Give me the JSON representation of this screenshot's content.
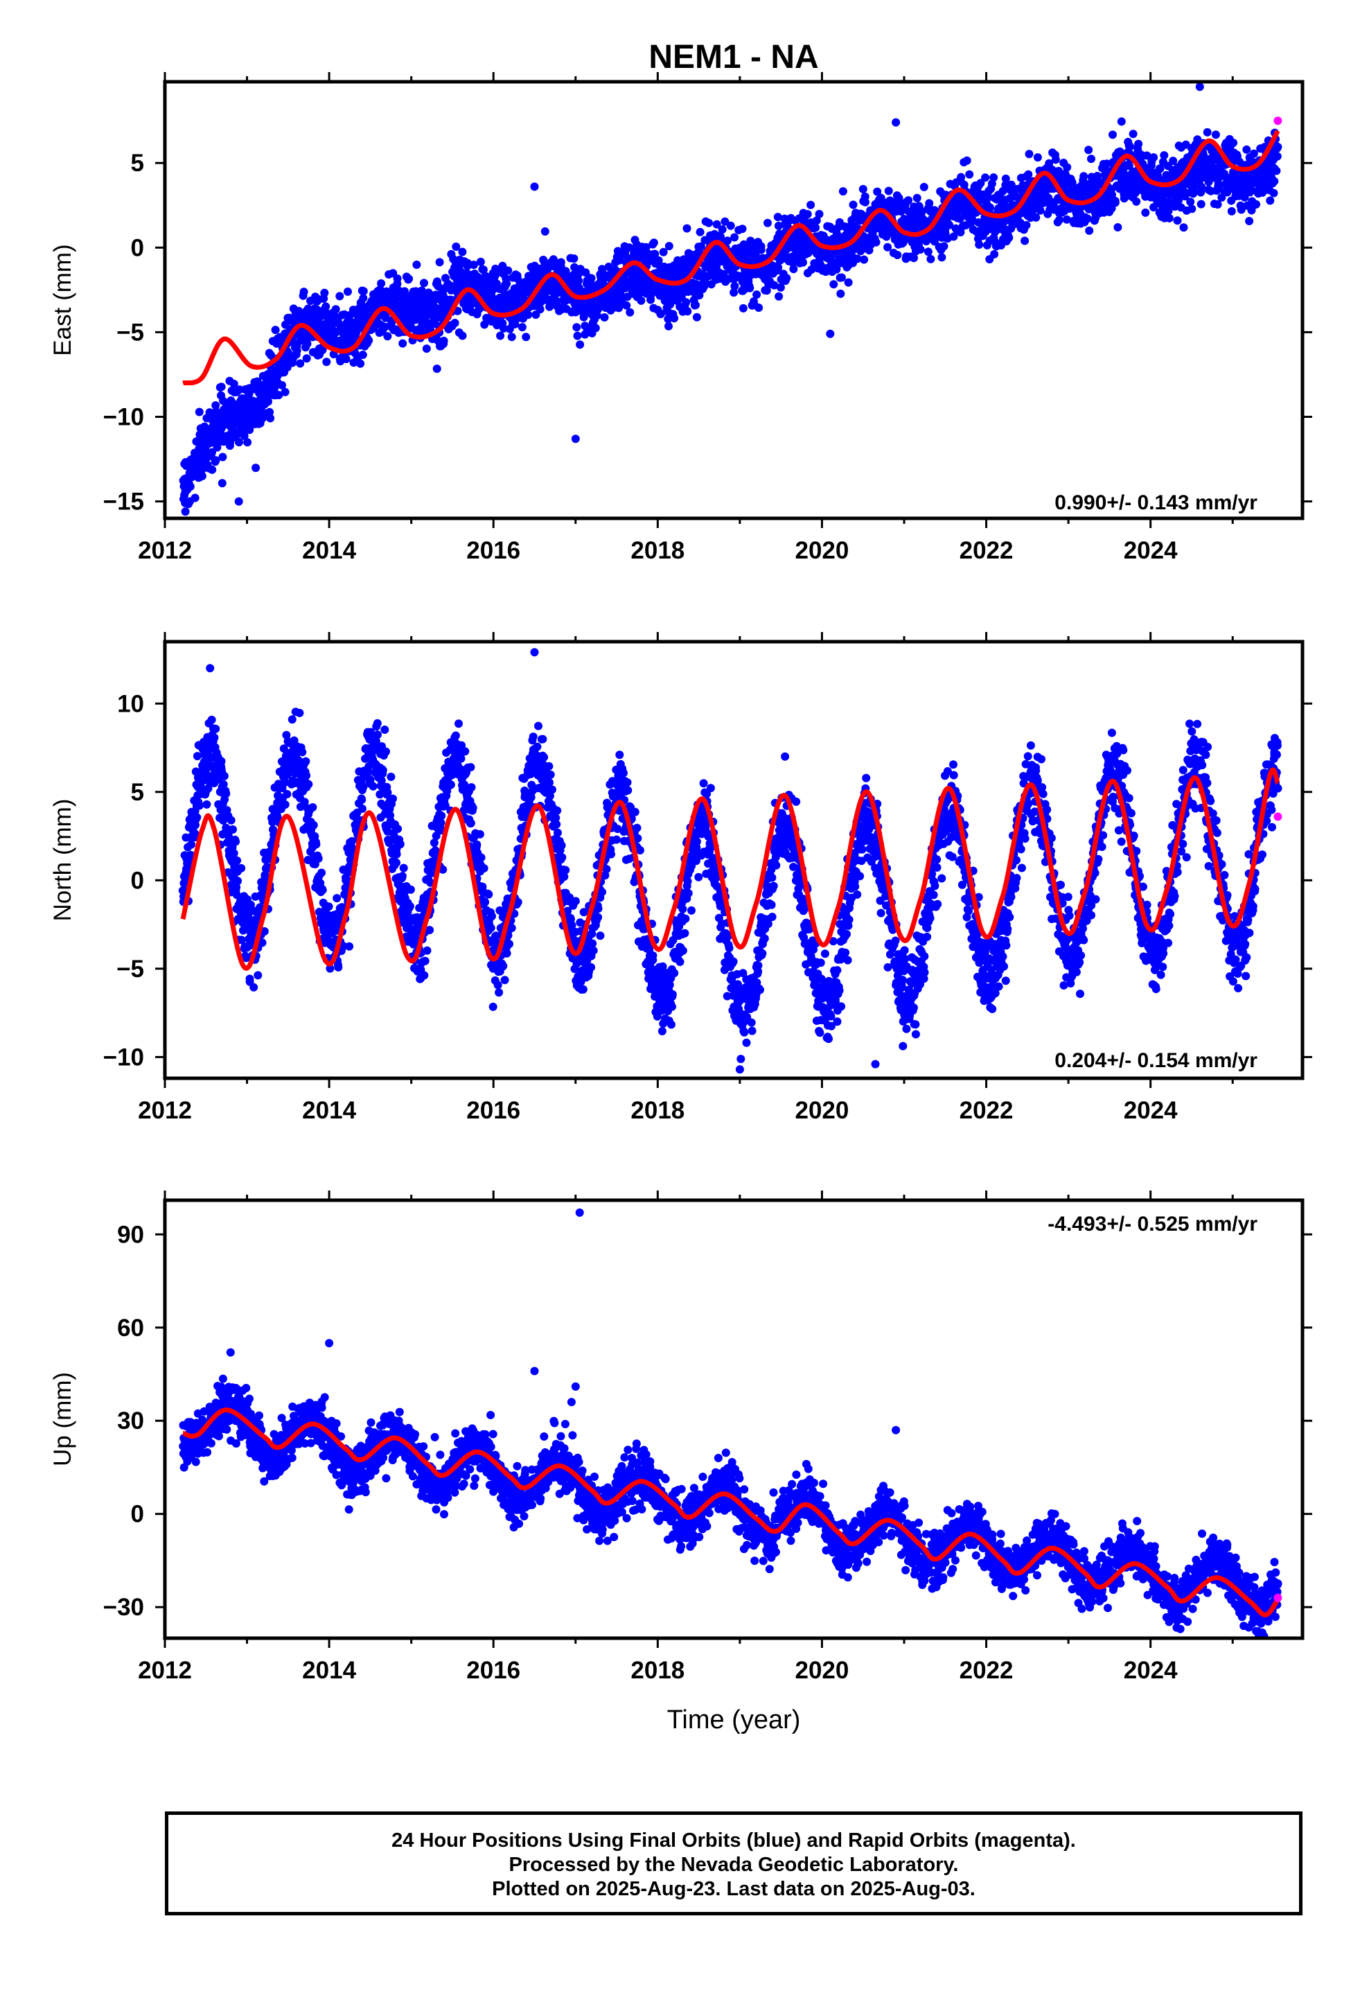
{
  "title": "NEM1 - NA",
  "colors": {
    "final_orbits": "#0000ff",
    "rapid_orbits": "#ff00ff",
    "model": "#ff0000"
  },
  "chart_data": [
    {
      "type": "scatter",
      "panel": "east",
      "xlabel": "",
      "ylabel": "East (mm)",
      "xlim": [
        2012.0,
        2025.85
      ],
      "ylim": [
        -16.0,
        9.8
      ],
      "xticks": [
        2012,
        2014,
        2016,
        2018,
        2020,
        2022,
        2024
      ],
      "yticks": [
        -15,
        -10,
        -5,
        0,
        5
      ],
      "rate_label": "0.990+/- 0.143 mm/yr",
      "data_span": [
        2012.22,
        2025.55
      ],
      "trend_points": [
        [
          2012.22,
          -13.5
        ],
        [
          2012.5,
          -11.8
        ],
        [
          2013.0,
          -9.5
        ],
        [
          2013.6,
          -5.2
        ],
        [
          2014.5,
          -4.2
        ],
        [
          2015.2,
          -3.3
        ],
        [
          2016.0,
          -2.8
        ],
        [
          2017.0,
          -2.6
        ],
        [
          2018.0,
          -1.7
        ],
        [
          2019.0,
          -0.9
        ],
        [
          2020.0,
          0.2
        ],
        [
          2021.0,
          1.4
        ],
        [
          2022.0,
          2.2
        ],
        [
          2023.0,
          3.3
        ],
        [
          2024.0,
          3.8
        ],
        [
          2025.55,
          4.9
        ]
      ],
      "seasonal_amplitude": 0.9,
      "scatter_sd": 0.9,
      "model_points": [
        [
          2012.22,
          -8.0
        ],
        [
          2012.45,
          -7.7
        ],
        [
          2012.72,
          -5.4
        ],
        [
          2013.05,
          -7.0
        ],
        [
          2013.35,
          -6.6
        ],
        [
          2013.65,
          -4.6
        ],
        [
          2014.0,
          -5.9
        ],
        [
          2014.3,
          -5.9
        ],
        [
          2014.65,
          -3.6
        ],
        [
          2015.0,
          -5.2
        ],
        [
          2015.35,
          -4.8
        ],
        [
          2015.68,
          -2.5
        ],
        [
          2016.0,
          -3.9
        ],
        [
          2016.35,
          -3.6
        ],
        [
          2016.7,
          -1.6
        ],
        [
          2017.0,
          -2.9
        ],
        [
          2017.35,
          -2.5
        ],
        [
          2017.7,
          -0.9
        ],
        [
          2018.0,
          -1.9
        ],
        [
          2018.35,
          -1.9
        ],
        [
          2018.7,
          0.3
        ],
        [
          2019.0,
          -1.0
        ],
        [
          2019.35,
          -0.8
        ],
        [
          2019.7,
          1.3
        ],
        [
          2020.0,
          0.1
        ],
        [
          2020.35,
          0.3
        ],
        [
          2020.7,
          2.2
        ],
        [
          2021.0,
          0.9
        ],
        [
          2021.3,
          1.1
        ],
        [
          2021.65,
          3.4
        ],
        [
          2022.0,
          2.0
        ],
        [
          2022.35,
          2.2
        ],
        [
          2022.7,
          4.4
        ],
        [
          2023.0,
          2.8
        ],
        [
          2023.35,
          3.0
        ],
        [
          2023.7,
          5.4
        ],
        [
          2024.0,
          3.9
        ],
        [
          2024.35,
          4.0
        ],
        [
          2024.7,
          6.3
        ],
        [
          2025.0,
          4.8
        ],
        [
          2025.3,
          4.9
        ],
        [
          2025.55,
          6.9
        ]
      ],
      "outliers": [
        [
          2012.25,
          -15.6
        ],
        [
          2016.5,
          3.6
        ],
        [
          2017.0,
          -11.3
        ],
        [
          2020.1,
          -5.1
        ],
        [
          2020.9,
          7.4
        ],
        [
          2024.6,
          9.5
        ],
        [
          2012.9,
          -15.0
        ]
      ],
      "rapid_points": [
        [
          2025.55,
          7.5
        ]
      ]
    },
    {
      "type": "scatter",
      "panel": "north",
      "xlabel": "",
      "ylabel": "North (mm)",
      "xlim": [
        2012.0,
        2025.85
      ],
      "ylim": [
        -11.2,
        13.5
      ],
      "xticks": [
        2012,
        2014,
        2016,
        2018,
        2020,
        2022,
        2024
      ],
      "yticks": [
        -10,
        -5,
        0,
        5,
        10
      ],
      "rate_label": "0.204+/- 0.154 mm/yr",
      "data_span": [
        2012.22,
        2025.55
      ],
      "trend_points": [
        [
          2012.22,
          1.8
        ],
        [
          2015.0,
          1.8
        ],
        [
          2017.0,
          0.8
        ],
        [
          2018.0,
          -1.6
        ],
        [
          2019.0,
          -2.3
        ],
        [
          2020.0,
          -1.8
        ],
        [
          2021.0,
          -1.6
        ],
        [
          2022.0,
          -0.6
        ],
        [
          2023.0,
          0.9
        ],
        [
          2024.0,
          1.1
        ],
        [
          2025.55,
          1.5
        ]
      ],
      "seasonal_amplitude": 5.2,
      "scatter_sd": 1.1,
      "model_points": [
        [
          2012.22,
          -2.2
        ],
        [
          2012.45,
          2.8
        ],
        [
          2012.6,
          2.9
        ],
        [
          2012.95,
          -4.8
        ],
        [
          2013.2,
          -2.0
        ],
        [
          2013.5,
          3.6
        ],
        [
          2013.95,
          -4.5
        ],
        [
          2014.2,
          -2.0
        ],
        [
          2014.5,
          3.8
        ],
        [
          2014.95,
          -4.3
        ],
        [
          2015.2,
          -2.0
        ],
        [
          2015.55,
          4.0
        ],
        [
          2015.95,
          -4.2
        ],
        [
          2016.2,
          -1.8
        ],
        [
          2016.55,
          4.2
        ],
        [
          2016.95,
          -3.9
        ],
        [
          2017.2,
          -1.5
        ],
        [
          2017.55,
          4.4
        ],
        [
          2017.95,
          -3.6
        ],
        [
          2018.2,
          -1.6
        ],
        [
          2018.55,
          4.6
        ],
        [
          2018.95,
          -3.5
        ],
        [
          2019.2,
          -1.3
        ],
        [
          2019.55,
          4.8
        ],
        [
          2019.95,
          -3.3
        ],
        [
          2020.2,
          -1.5
        ],
        [
          2020.55,
          5.0
        ],
        [
          2020.95,
          -3.1
        ],
        [
          2021.2,
          -1.1
        ],
        [
          2021.55,
          5.2
        ],
        [
          2021.95,
          -2.9
        ],
        [
          2022.2,
          -0.9
        ],
        [
          2022.55,
          5.4
        ],
        [
          2022.95,
          -2.7
        ],
        [
          2023.2,
          -0.7
        ],
        [
          2023.55,
          5.6
        ],
        [
          2023.95,
          -2.5
        ],
        [
          2024.2,
          -0.5
        ],
        [
          2024.55,
          5.8
        ],
        [
          2024.95,
          -2.3
        ],
        [
          2025.2,
          -0.2
        ],
        [
          2025.45,
          5.9
        ],
        [
          2025.55,
          5.5
        ]
      ],
      "outliers": [
        [
          2012.55,
          12.0
        ],
        [
          2016.5,
          12.9
        ],
        [
          2019.0,
          -10.7
        ],
        [
          2020.65,
          -10.4
        ],
        [
          2019.55,
          7.0
        ],
        [
          2025.1,
          -3.0
        ]
      ],
      "rapid_points": [
        [
          2025.55,
          3.6
        ]
      ]
    },
    {
      "type": "scatter",
      "panel": "up",
      "xlabel": "Time (year)",
      "ylabel": "Up (mm)",
      "xlim": [
        2012.0,
        2025.85
      ],
      "ylim": [
        -40.0,
        101.0
      ],
      "xticks": [
        2012,
        2014,
        2016,
        2018,
        2020,
        2022,
        2024
      ],
      "yticks": [
        -30,
        0,
        30,
        60,
        90
      ],
      "rate_label": "-4.493+/- 0.525 mm/yr",
      "data_span": [
        2012.22,
        2025.55
      ],
      "trend_points": [
        [
          2012.22,
          30.0
        ],
        [
          2013.0,
          27.0
        ],
        [
          2014.0,
          22.0
        ],
        [
          2015.0,
          18.0
        ],
        [
          2016.0,
          13.0
        ],
        [
          2017.0,
          9.0
        ],
        [
          2018.0,
          4.0
        ],
        [
          2019.0,
          1.0
        ],
        [
          2020.0,
          -3.0
        ],
        [
          2021.0,
          -7.0
        ],
        [
          2022.0,
          -11.0
        ],
        [
          2023.0,
          -15.0
        ],
        [
          2024.0,
          -20.0
        ],
        [
          2025.55,
          -24.0
        ]
      ],
      "seasonal_amplitude": 7.0,
      "scatter_sd": 4.0,
      "model_points": [
        [
          2012.22,
          26.0
        ],
        [
          2012.4,
          25.5
        ],
        [
          2012.75,
          33.5
        ],
        [
          2013.2,
          25.0
        ],
        [
          2013.4,
          21.5
        ],
        [
          2013.8,
          29.0
        ],
        [
          2014.2,
          21.0
        ],
        [
          2014.4,
          17.5
        ],
        [
          2014.8,
          24.5
        ],
        [
          2015.2,
          16.0
        ],
        [
          2015.4,
          12.5
        ],
        [
          2015.8,
          20.0
        ],
        [
          2016.2,
          12.0
        ],
        [
          2016.4,
          8.5
        ],
        [
          2016.8,
          15.5
        ],
        [
          2017.2,
          7.5
        ],
        [
          2017.4,
          3.5
        ],
        [
          2017.8,
          10.5
        ],
        [
          2018.2,
          3.0
        ],
        [
          2018.4,
          -1.0
        ],
        [
          2018.8,
          6.5
        ],
        [
          2019.2,
          -1.5
        ],
        [
          2019.45,
          -5.5
        ],
        [
          2019.8,
          3.0
        ],
        [
          2020.2,
          -6.0
        ],
        [
          2020.4,
          -9.5
        ],
        [
          2020.8,
          -2.0
        ],
        [
          2021.2,
          -10.0
        ],
        [
          2021.4,
          -14.5
        ],
        [
          2021.8,
          -6.5
        ],
        [
          2022.2,
          -15.0
        ],
        [
          2022.4,
          -19.0
        ],
        [
          2022.8,
          -11.0
        ],
        [
          2023.2,
          -19.0
        ],
        [
          2023.4,
          -23.5
        ],
        [
          2023.8,
          -16.0
        ],
        [
          2024.2,
          -23.5
        ],
        [
          2024.4,
          -28.0
        ],
        [
          2024.8,
          -20.5
        ],
        [
          2025.2,
          -28.0
        ],
        [
          2025.4,
          -32.5
        ],
        [
          2025.55,
          -27.5
        ]
      ],
      "outliers": [
        [
          2017.05,
          97.0
        ],
        [
          2014.0,
          55.0
        ],
        [
          2016.5,
          46.0
        ],
        [
          2017.0,
          41.0
        ],
        [
          2020.9,
          27.0
        ],
        [
          2012.8,
          52.0
        ],
        [
          2016.95,
          36.0
        ]
      ],
      "rapid_points": [
        [
          2025.55,
          -27.0
        ]
      ]
    }
  ],
  "footer": {
    "line1": "24 Hour Positions Using Final Orbits (blue) and Rapid Orbits (magenta).",
    "line2": "Processed by the Nevada Geodetic Laboratory.",
    "line3": "Plotted on 2025-Aug-23. Last data on 2025-Aug-03."
  }
}
